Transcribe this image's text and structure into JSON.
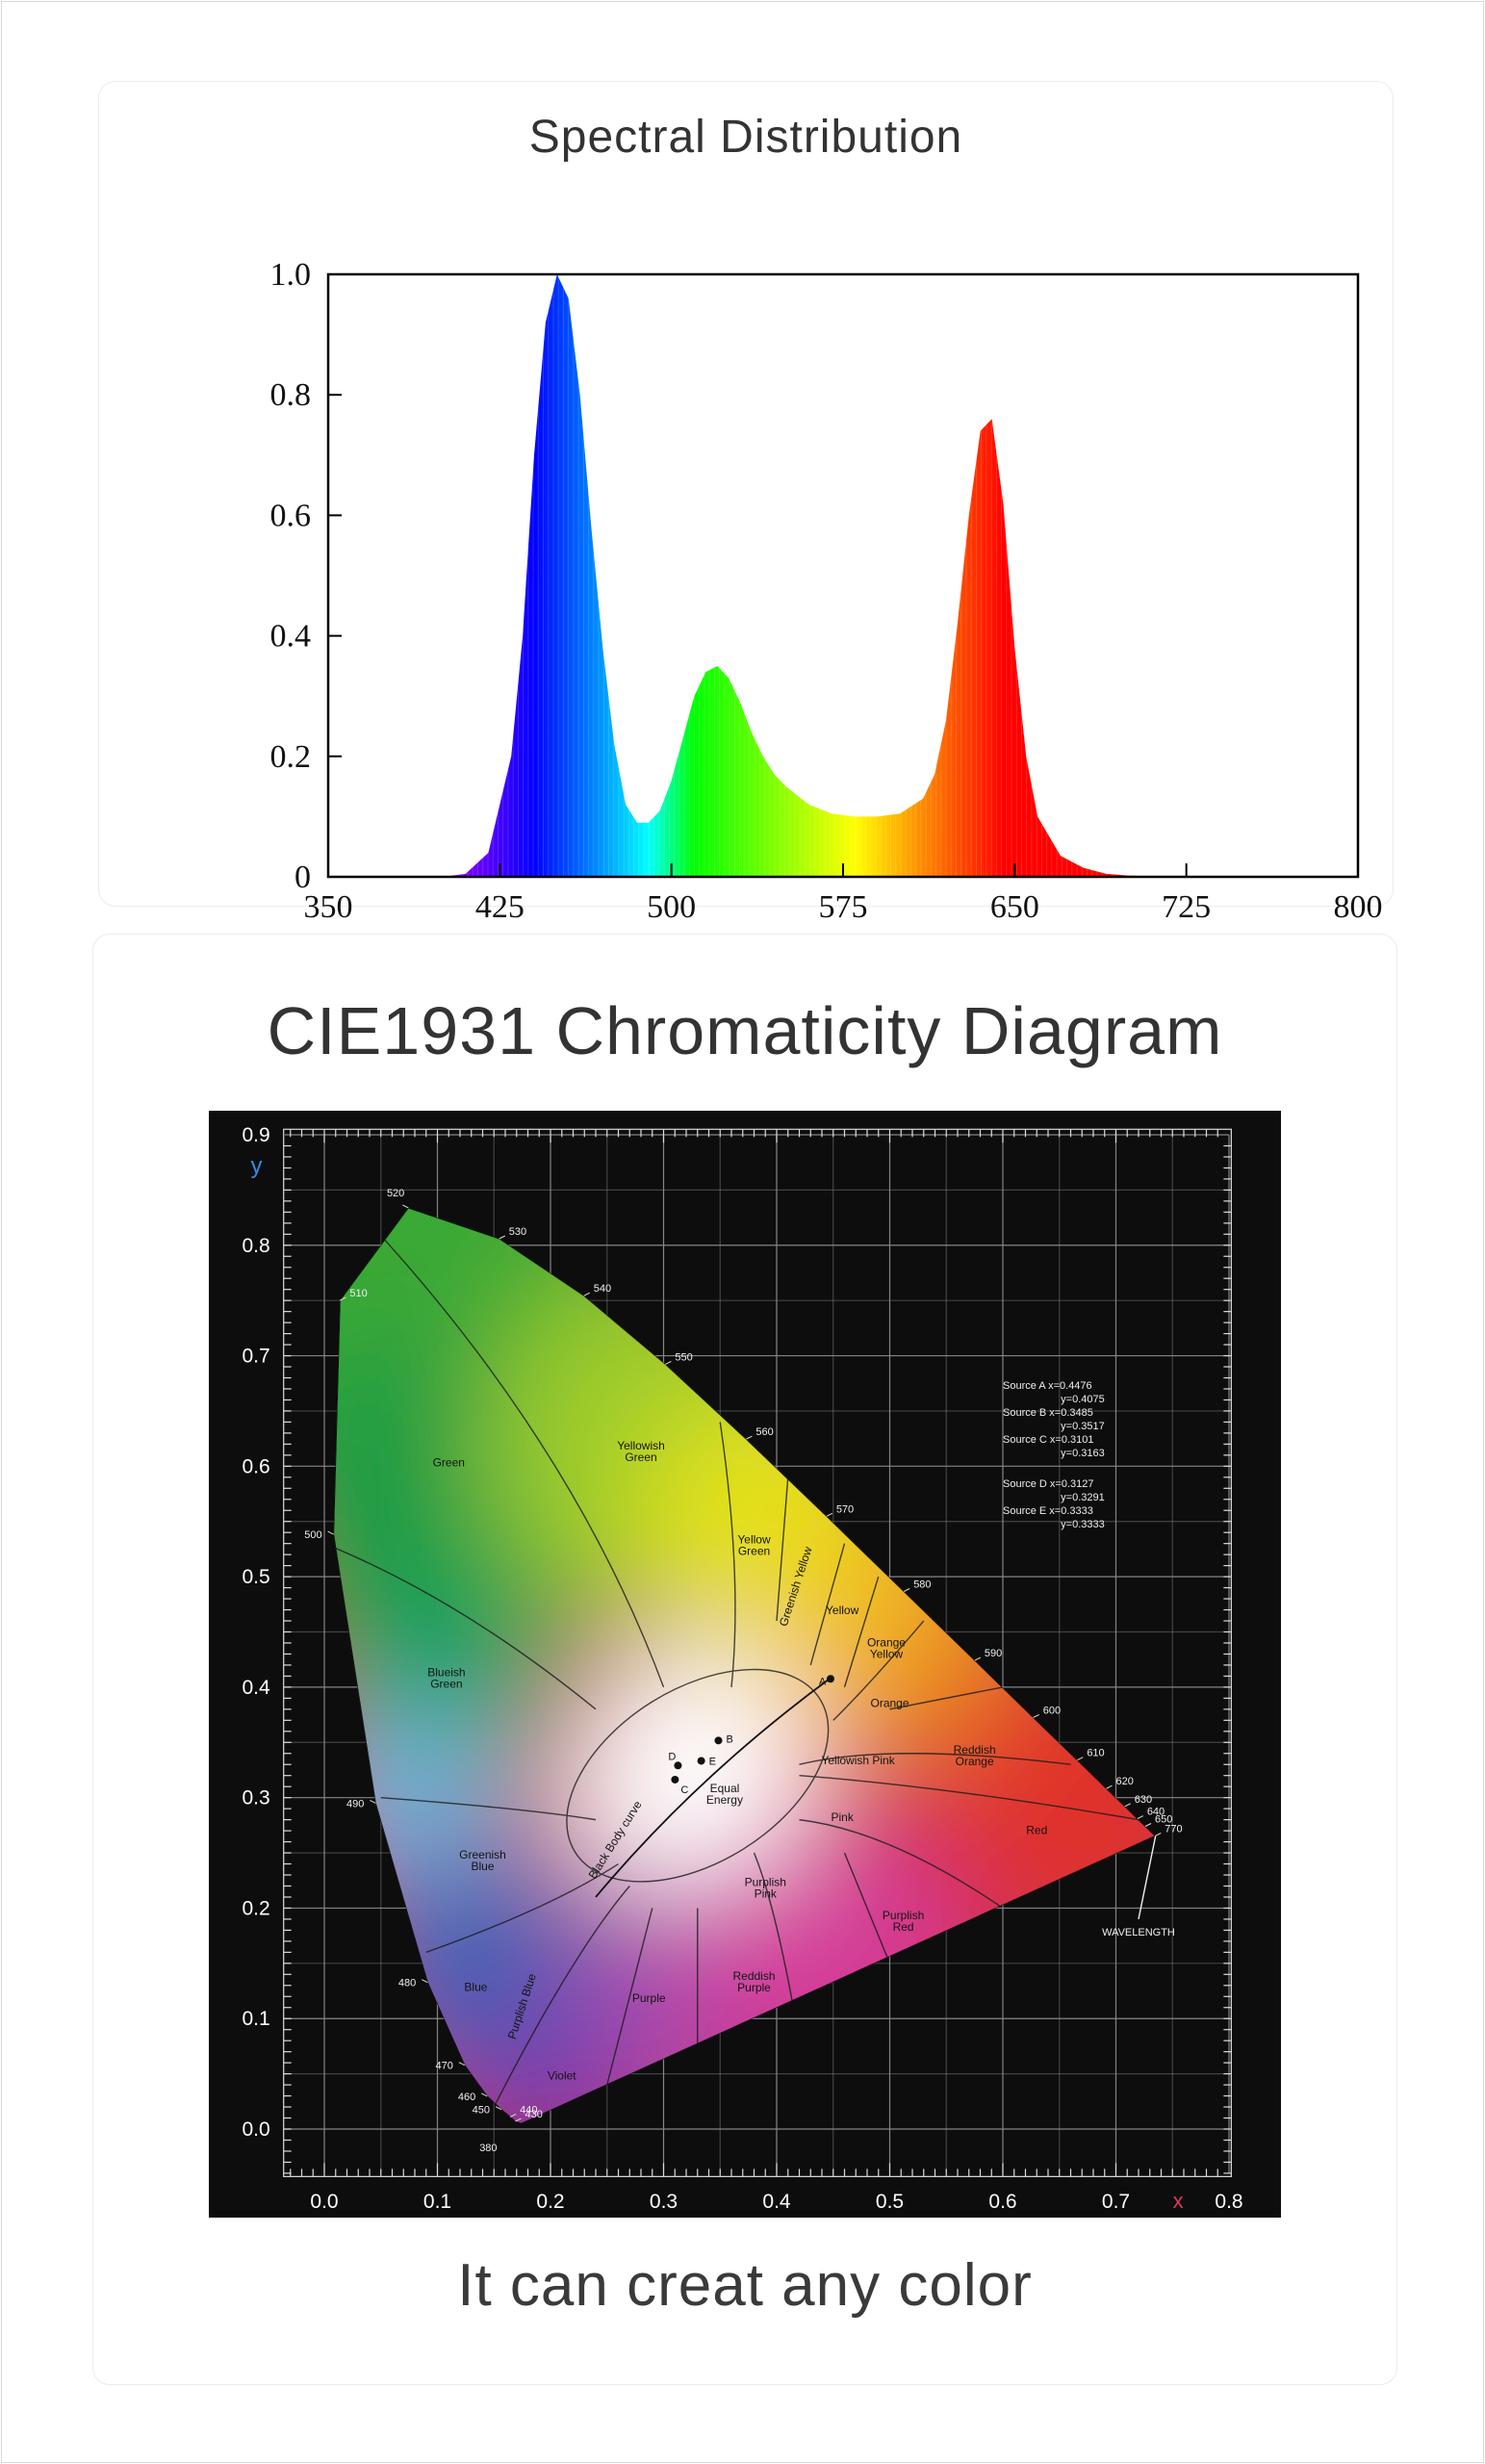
{
  "spectrum": {
    "title": "Spectral Distribution",
    "chart_data": {
      "type": "area",
      "title": "Spectral Distribution",
      "xlabel": "",
      "ylabel": "",
      "xlim": [
        350,
        800
      ],
      "ylim": [
        0,
        1.0
      ],
      "grid": false,
      "xticks": [
        "350",
        "425",
        "500",
        "575",
        "650",
        "725",
        "800"
      ],
      "yticks": [
        "0",
        "0.2",
        "0.4",
        "0.6",
        "0.8",
        "1.0"
      ],
      "fill": "wavelength-spectrum",
      "x": [
        350,
        380,
        400,
        410,
        420,
        430,
        435,
        440,
        445,
        450,
        455,
        460,
        465,
        470,
        475,
        480,
        485,
        490,
        495,
        500,
        505,
        510,
        515,
        520,
        525,
        530,
        535,
        540,
        545,
        550,
        560,
        570,
        580,
        590,
        600,
        610,
        615,
        620,
        625,
        630,
        635,
        640,
        645,
        650,
        655,
        660,
        670,
        680,
        690,
        700,
        720,
        800
      ],
      "y": [
        0.0,
        0.0,
        0.0,
        0.005,
        0.04,
        0.2,
        0.4,
        0.7,
        0.92,
        1.0,
        0.96,
        0.8,
        0.58,
        0.38,
        0.22,
        0.12,
        0.09,
        0.09,
        0.11,
        0.16,
        0.23,
        0.3,
        0.34,
        0.35,
        0.33,
        0.29,
        0.24,
        0.2,
        0.17,
        0.15,
        0.12,
        0.105,
        0.1,
        0.1,
        0.105,
        0.13,
        0.17,
        0.26,
        0.42,
        0.6,
        0.74,
        0.76,
        0.62,
        0.38,
        0.2,
        0.1,
        0.035,
        0.015,
        0.005,
        0.002,
        0.0,
        0.0
      ]
    }
  },
  "cie": {
    "title": "CIE1931 Chromaticity Diagram",
    "caption": "It can creat any color",
    "chart_data": {
      "type": "scatter",
      "title": "CIE1931 Chromaticity Diagram",
      "xlabel": "x",
      "ylabel": "y",
      "xlim": [
        -0.04,
        0.8
      ],
      "ylim": [
        -0.04,
        0.9
      ],
      "grid": true,
      "background": "#0d0d0d",
      "xticks": [
        "0.0",
        "0.1",
        "0.2",
        "0.3",
        "0.4",
        "0.5",
        "0.6",
        "0.7",
        "0.8"
      ],
      "yticks": [
        "0.0",
        "0.1",
        "0.2",
        "0.3",
        "0.4",
        "0.5",
        "0.6",
        "0.7",
        "0.8",
        "0.9"
      ],
      "spectral_locus": [
        {
          "nm": "380",
          "x": 0.1741,
          "y": 0.005
        },
        {
          "nm": "430",
          "x": 0.1689,
          "y": 0.0069
        },
        {
          "nm": "440",
          "x": 0.1644,
          "y": 0.0109
        },
        {
          "nm": "450",
          "x": 0.1566,
          "y": 0.0177
        },
        {
          "nm": "460",
          "x": 0.144,
          "y": 0.0297
        },
        {
          "nm": "470",
          "x": 0.1241,
          "y": 0.0578
        },
        {
          "nm": "480",
          "x": 0.0913,
          "y": 0.1327
        },
        {
          "nm": "490",
          "x": 0.0454,
          "y": 0.295
        },
        {
          "nm": "500",
          "x": 0.0082,
          "y": 0.5384
        },
        {
          "nm": "510",
          "x": 0.0139,
          "y": 0.7502
        },
        {
          "nm": "520",
          "x": 0.0743,
          "y": 0.8338
        },
        {
          "nm": "530",
          "x": 0.1547,
          "y": 0.8059
        },
        {
          "nm": "540",
          "x": 0.2296,
          "y": 0.7543
        },
        {
          "nm": "550",
          "x": 0.3016,
          "y": 0.6923
        },
        {
          "nm": "560",
          "x": 0.3731,
          "y": 0.6245
        },
        {
          "nm": "570",
          "x": 0.4441,
          "y": 0.5547
        },
        {
          "nm": "580",
          "x": 0.5125,
          "y": 0.4866
        },
        {
          "nm": "590",
          "x": 0.5752,
          "y": 0.4242
        },
        {
          "nm": "600",
          "x": 0.627,
          "y": 0.3725
        },
        {
          "nm": "610",
          "x": 0.6658,
          "y": 0.334
        },
        {
          "nm": "620",
          "x": 0.6915,
          "y": 0.3083
        },
        {
          "nm": "630",
          "x": 0.7079,
          "y": 0.292
        },
        {
          "nm": "640",
          "x": 0.719,
          "y": 0.2809
        },
        {
          "nm": "650",
          "x": 0.726,
          "y": 0.274
        },
        {
          "nm": "770",
          "x": 0.7347,
          "y": 0.2653
        }
      ],
      "region_labels": [
        {
          "text": "Green",
          "x": 0.11,
          "y": 0.6
        },
        {
          "text": "Yellowish\nGreen",
          "x": 0.28,
          "y": 0.615
        },
        {
          "text": "Yellow\nGreen",
          "x": 0.38,
          "y": 0.53
        },
        {
          "text": "Greenish Yellow",
          "x": 0.42,
          "y": 0.49
        },
        {
          "text": "Yellow",
          "x": 0.458,
          "y": 0.466
        },
        {
          "text": "Orange\nYellow",
          "x": 0.497,
          "y": 0.437
        },
        {
          "text": "Orange",
          "x": 0.5,
          "y": 0.382
        },
        {
          "text": "Reddish\nOrange",
          "x": 0.575,
          "y": 0.34
        },
        {
          "text": "Yellowish Pink",
          "x": 0.472,
          "y": 0.33
        },
        {
          "text": "Red",
          "x": 0.63,
          "y": 0.267
        },
        {
          "text": "Pink",
          "x": 0.458,
          "y": 0.279
        },
        {
          "text": "Blueish\nGreen",
          "x": 0.108,
          "y": 0.41
        },
        {
          "text": "Greenish\nBlue",
          "x": 0.14,
          "y": 0.245
        },
        {
          "text": "Blue",
          "x": 0.134,
          "y": 0.125
        },
        {
          "text": "Purplish Blue",
          "x": 0.178,
          "y": 0.11
        },
        {
          "text": "Purple",
          "x": 0.287,
          "y": 0.115
        },
        {
          "text": "Violet",
          "x": 0.21,
          "y": 0.045
        },
        {
          "text": "Purplish\nPink",
          "x": 0.39,
          "y": 0.22
        },
        {
          "text": "Reddish\nPurple",
          "x": 0.38,
          "y": 0.135
        },
        {
          "text": "Purplish\nRed",
          "x": 0.512,
          "y": 0.19
        },
        {
          "text": "Black Body curve",
          "x": 0.26,
          "y": 0.26
        },
        {
          "text": "Equal\nEnergy",
          "x": 0.354,
          "y": 0.305
        }
      ],
      "sources": [
        {
          "name": "A",
          "x": 0.4476,
          "y": 0.4075
        },
        {
          "name": "B",
          "x": 0.3485,
          "y": 0.3517
        },
        {
          "name": "C",
          "x": 0.3101,
          "y": 0.3163
        },
        {
          "name": "D",
          "x": 0.3127,
          "y": 0.3291
        },
        {
          "name": "E",
          "x": 0.3333,
          "y": 0.3333
        }
      ],
      "legend_lines": [
        "Source A x=0.4476",
        "y=0.4075",
        "Source B x=0.3485",
        "y=0.3517",
        "Source C x=0.3101",
        "y=0.3163",
        "Source D x=0.3127",
        "y=0.3291",
        "Source E x=0.3333",
        "y=0.3333"
      ],
      "wavelength_label": "WAVELENGTH"
    }
  }
}
